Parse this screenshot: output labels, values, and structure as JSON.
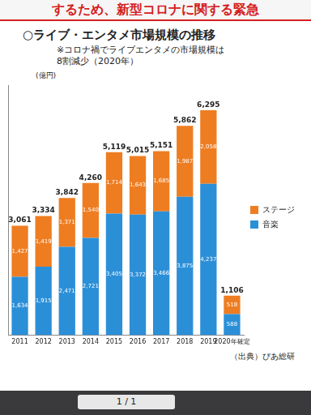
{
  "header": "するため、新型コロナに関する緊急",
  "page": "1 / 1",
  "chart_data": {
    "type": "bar",
    "title": "○ライブ・エンタメ市場規模の推移",
    "subtitle": [
      "※コロナ禍でライブエンタメの市場規模は",
      "8割減少（2020年）"
    ],
    "y_label": "(億円)",
    "source": "（出典）ぴあ総研",
    "categories": [
      "2011",
      "2012",
      "2013",
      "2014",
      "2015",
      "2016",
      "2017",
      "2018",
      "2019",
      "2020年確定"
    ],
    "series": [
      {
        "name": "音楽",
        "color": "#2b8fd8",
        "values": [
          1634,
          1915,
          2471,
          2721,
          3405,
          3372,
          3466,
          3875,
          4237,
          588
        ],
        "value_labels": [
          "1,634",
          "1,915",
          "2,471",
          "2,721",
          "3,405",
          "3,372",
          "3,466",
          "3,875",
          "4,237",
          "588"
        ]
      },
      {
        "name": "ステージ",
        "color": "#ee7d21",
        "values": [
          1427,
          1419,
          1371,
          1540,
          1714,
          1643,
          1685,
          1987,
          2058,
          518
        ],
        "value_labels": [
          "1,427",
          "1,419",
          "1,371",
          "1,540",
          "1,714",
          "1,643",
          "1,685",
          "1,987",
          "2,058",
          "518"
        ]
      }
    ],
    "totals": {
      "values": [
        3061,
        3334,
        3842,
        4260,
        5119,
        5015,
        5151,
        5862,
        6295,
        1106
      ],
      "value_labels": [
        "3,061",
        "3,334",
        "3,842",
        "4,260",
        "5,119",
        "5,015",
        "5,151",
        "5,862",
        "6,295",
        "1,106"
      ]
    },
    "stacked": true,
    "data_labels": true,
    "legend": "right",
    "grid": false,
    "tick_labels": "x",
    "ylim": [
      0,
      7000
    ]
  }
}
